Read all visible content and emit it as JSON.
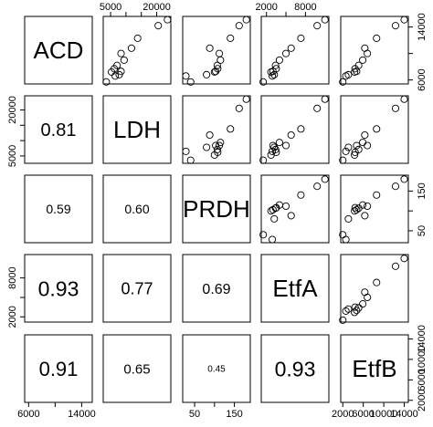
{
  "chart_data": {
    "type": "scatter",
    "layout": "pairs-matrix",
    "variables": [
      {
        "name": "ACD",
        "ticks": [
          6000,
          10000,
          14000
        ],
        "tick_labels": [
          "6000",
          "",
          "14000"
        ],
        "range": [
          5400,
          15600
        ]
      },
      {
        "name": "LDH",
        "ticks": [
          5000,
          10000,
          15000,
          20000
        ],
        "tick_labels": [
          "5000",
          "",
          "",
          "20000"
        ],
        "range": [
          2600,
          24600
        ]
      },
      {
        "name": "PRDH",
        "ticks": [
          50,
          100,
          150
        ],
        "tick_labels": [
          "50",
          "",
          "150"
        ],
        "range": [
          20,
          190
        ]
      },
      {
        "name": "EtfA",
        "ticks": [
          2000,
          5000,
          8000
        ],
        "tick_labels": [
          "2000",
          "",
          "8000"
        ],
        "range": [
          1200,
          11600
        ]
      },
      {
        "name": "EtfB",
        "ticks": [
          2000,
          6000,
          10000,
          14000
        ],
        "tick_labels": [
          "2000",
          "6000",
          "10000",
          "14000"
        ],
        "range": [
          1600,
          14800
        ]
      }
    ],
    "observations": [
      {
        "ACD": 5700,
        "LDH": 3600,
        "PRDH": 40,
        "EtfA": 1500,
        "EtfB": 2000
      },
      {
        "ACD": 6600,
        "LDH": 6500,
        "PRDH": 28,
        "EtfA": 2900,
        "EtfB": 2600
      },
      {
        "ACD": 6800,
        "LDH": 7800,
        "PRDH": 80,
        "EtfA": 3200,
        "EtfB": 3100
      },
      {
        "ACD": 7200,
        "LDH": 5300,
        "PRDH": 100,
        "EtfA": 2700,
        "EtfB": 4300
      },
      {
        "ACD": 7700,
        "LDH": 6200,
        "PRDH": 108,
        "EtfA": 3500,
        "EtfB": 4400
      },
      {
        "ACD": 7300,
        "LDH": 8400,
        "PRDH": 103,
        "EtfA": 3000,
        "EtfB": 4700
      },
      {
        "ACD": 8200,
        "LDH": 7100,
        "PRDH": 107,
        "EtfA": 3400,
        "EtfB": 5100
      },
      {
        "ACD": 9000,
        "LDH": 9400,
        "PRDH": 115,
        "EtfA": 4000,
        "EtfB": 5900
      },
      {
        "ACD": 10000,
        "LDH": 8400,
        "PRDH": 112,
        "EtfA": 5000,
        "EtfB": 6800
      },
      {
        "ACD": 10800,
        "LDH": 11800,
        "PRDH": 88,
        "EtfA": 5800,
        "EtfB": 6300
      },
      {
        "ACD": 12300,
        "LDH": 13800,
        "PRDH": 140,
        "EtfA": 7300,
        "EtfB": 8600
      },
      {
        "ACD": 14200,
        "LDH": 20500,
        "PRDH": 162,
        "EtfA": 9800,
        "EtfB": 12300
      },
      {
        "ACD": 15100,
        "LDH": 23500,
        "PRDH": 180,
        "EtfA": 11000,
        "EtfB": 14000
      }
    ],
    "correlations": [
      {
        "row": "LDH",
        "col": "ACD",
        "value": "0.81",
        "size": 20
      },
      {
        "row": "PRDH",
        "col": "ACD",
        "value": "0.59",
        "size": 14
      },
      {
        "row": "PRDH",
        "col": "LDH",
        "value": "0.60",
        "size": 14
      },
      {
        "row": "EtfA",
        "col": "ACD",
        "value": "0.93",
        "size": 23
      },
      {
        "row": "EtfA",
        "col": "LDH",
        "value": "0.77",
        "size": 18
      },
      {
        "row": "EtfA",
        "col": "PRDH",
        "value": "0.69",
        "size": 16
      },
      {
        "row": "EtfB",
        "col": "ACD",
        "value": "0.91",
        "size": 22
      },
      {
        "row": "EtfB",
        "col": "LDH",
        "value": "0.65",
        "size": 15
      },
      {
        "row": "EtfB",
        "col": "PRDH",
        "value": "0.45",
        "size": 10
      },
      {
        "row": "EtfB",
        "col": "EtfA",
        "value": "0.93",
        "size": 23
      }
    ],
    "axes": {
      "top": [
        "LDH",
        "EtfA"
      ],
      "bottom": [
        "ACD",
        "PRDH",
        "EtfB"
      ],
      "left": [
        "LDH",
        "EtfA"
      ],
      "right": [
        "ACD",
        "PRDH",
        "EtfB"
      ]
    },
    "title": "",
    "grid": false
  }
}
